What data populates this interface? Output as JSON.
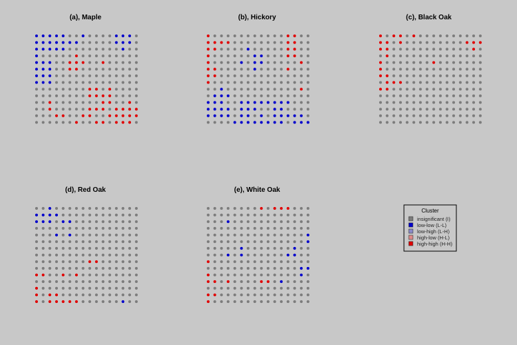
{
  "colors": {
    "background": "#c8c8c8",
    "I": "#7c7c7c",
    "LL": "#0000cc",
    "LH": "#8a8ac8",
    "HL": "#e08a8a",
    "HH": "#e00000"
  },
  "legend": {
    "title": "Cluster",
    "items": [
      {
        "key": "I",
        "label": "insignificant (I)"
      },
      {
        "key": "LL",
        "label": "low-low (L-L)"
      },
      {
        "key": "LH",
        "label": "low-high (L-H)"
      },
      {
        "key": "HL",
        "label": "high-low (H-L)"
      },
      {
        "key": "HH",
        "label": "high-high (H-H)"
      }
    ]
  },
  "chart_data": [
    {
      "type": "heatmap",
      "title": "(a), Maple",
      "grid": [
        "BBBBB..B....BBB.",
        "BBBBBBB.....BBB.",
        "BBBBB........B..",
        "B.....R.........",
        "BBB..RRR..R.....",
        "BBB..RR.........",
        "BBB.............",
        "BBB.............",
        "........RR.R....",
        "........RRRR....",
        "..R.......RR..R.",
        "..R.....RRR.RRRR",
        "...RR..RR..RRRRR",
        "......R..RR.RRR."
      ]
    },
    {
      "type": "heatmap",
      "title": "(b), Hickory",
      "grid": [
        "R...........RR..",
        "RRRR........RR..",
        "RR....B.....RR..",
        "R......BB...RR..",
        "R....B.BB.....R.",
        "RR.....B....R...",
        "RR..............",
        "R...............",
        "..B...........R.",
        ".BBB............",
        "BBB..BBBBBBBB...",
        "BBBB.BBB..BB....",
        "BBBB.BB.B.BBBBB.",
        "....BBBBBBBB.BBB"
      ]
    },
    {
      "type": "heatmap",
      "title": "(c), Black Oak",
      "grid": [
        "R.RR.R..........",
        "RR.R.........RRR",
        "RR............R.",
        ".R..............",
        "R.......R.......",
        "R...............",
        "RR..............",
        ".RRR............",
        "RR..............",
        "................",
        "................",
        "................",
        "................",
        "................"
      ]
    },
    {
      "type": "heatmap",
      "title": "(d), Red Oak",
      "grid": [
        "..B.............",
        "BBBB............",
        "BBB.BB..........",
        "................",
        "...B.B..........",
        "................",
        "................",
        "................",
        "........RR......",
        "................",
        "RR..R.R.........",
        "................",
        "R...............",
        "R.RR............",
        "R.RRRRR......B.."
      ]
    },
    {
      "type": "heatmap",
      "title": "(e), White Oak",
      "grid": [
        "........R.RRR...",
        "................",
        "...B............",
        "................",
        "...............B",
        "...............B",
        ".....B.......B..",
        "...B.B......BB..",
        "R...............",
        "..............BB",
        "R.............B.",
        "RR.R....RR.B....",
        "................",
        "RR..............",
        "R..............."
      ]
    }
  ]
}
